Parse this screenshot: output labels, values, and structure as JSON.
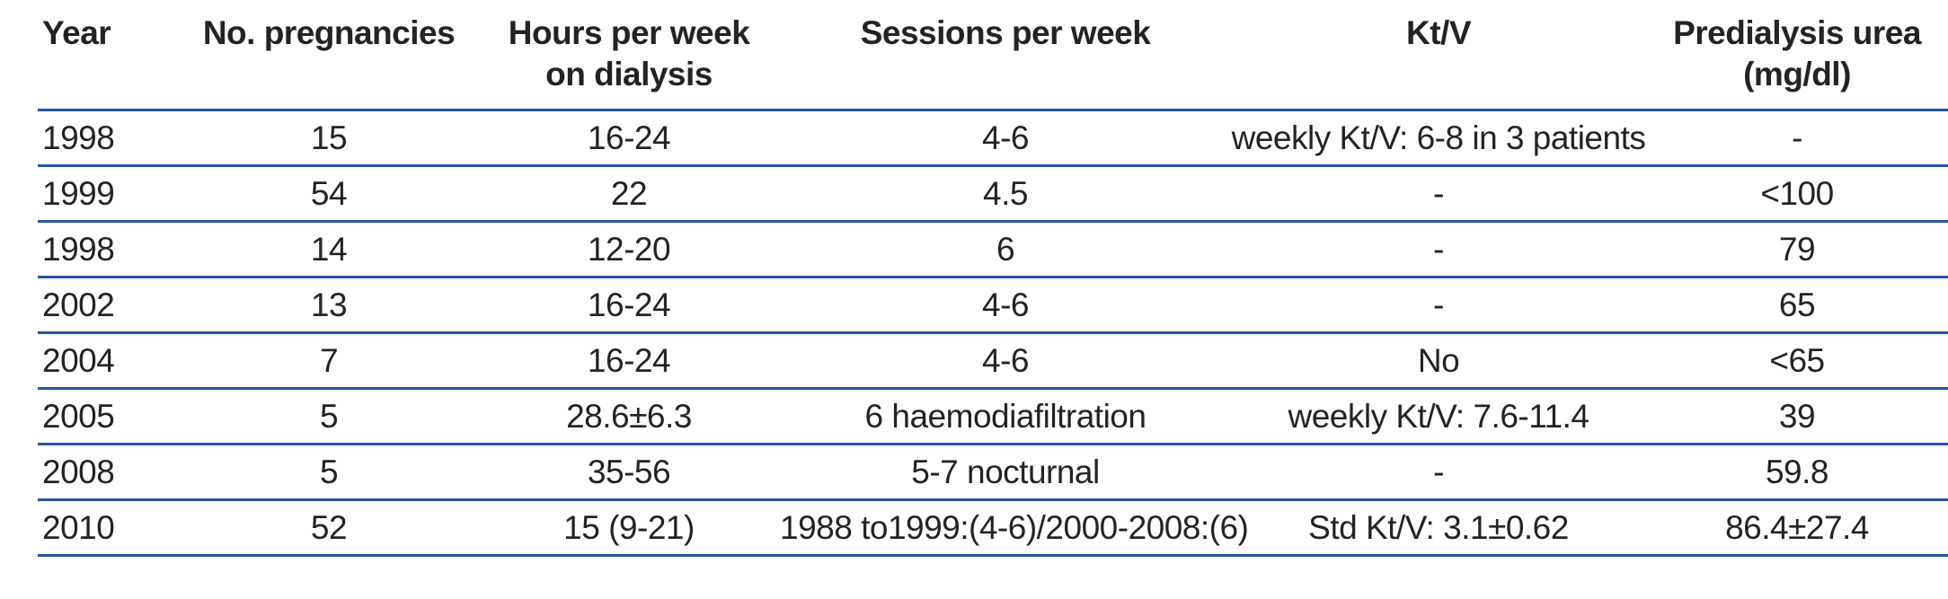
{
  "table": {
    "columns": [
      {
        "label": "Year",
        "sublabel": ""
      },
      {
        "label": "No. pregnancies",
        "sublabel": ""
      },
      {
        "label": "Hours per week",
        "sublabel": "on dialysis"
      },
      {
        "label": "Sessions per week",
        "sublabel": ""
      },
      {
        "label": "Kt/V",
        "sublabel": ""
      },
      {
        "label": "Predialysis urea",
        "sublabel": "(mg/dl)"
      }
    ],
    "rows": [
      [
        "1998",
        "15",
        "16-24",
        "4-6",
        "weekly Kt/V: 6-8 in 3 patients",
        "-"
      ],
      [
        "1999",
        "54",
        "22",
        "4.5",
        "-",
        "<100"
      ],
      [
        "1998",
        "14",
        "12-20",
        "6",
        "-",
        "79"
      ],
      [
        "2002",
        "13",
        "16-24",
        "4-6",
        "-",
        "65"
      ],
      [
        "2004",
        "7",
        "16-24",
        "4-6",
        "No",
        "<65"
      ],
      [
        "2005",
        "5",
        "28.6±6.3",
        "6 haemodiafiltration",
        "weekly Kt/V: 7.6-11.4",
        "39"
      ],
      [
        "2008",
        "5",
        "35-56",
        "5-7 nocturnal",
        "-",
        "59.8"
      ],
      [
        "2010",
        "52",
        "15 (9-21)",
        "1988 to1999:(4-6)/2000-2008:(6)",
        "Std Kt/V: 3.1±0.62",
        "86.4±27.4"
      ]
    ],
    "colors": {
      "rule_blue": "#2454a6",
      "text": "#232323"
    }
  }
}
